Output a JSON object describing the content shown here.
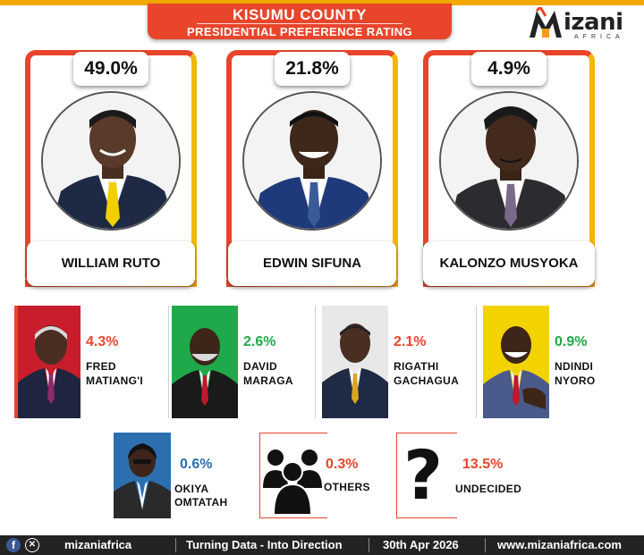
{
  "header": {
    "title_line1": "KISUMU COUNTY",
    "title_line2": "PRESIDENTIAL PREFERENCE RATING",
    "logo_word": "izani",
    "logo_sub": "AFRICA"
  },
  "colors": {
    "accent_red": "#e8452b",
    "accent_orange": "#f29a1e",
    "accent_yellow": "#f2b705",
    "pct_red": "#e8452b",
    "pct_green": "#1fa94a",
    "pct_blue": "#2c6fb0",
    "footer_bg": "#232323"
  },
  "chart_data": {
    "type": "bar",
    "categories": [
      "WILLIAM RUTO",
      "EDWIN SIFUNA",
      "KALONZO MUSYOKA",
      "FRED MATIANG'I",
      "DAVID MARAGA",
      "RIGATHI GACHAGUA",
      "NDINDI NYORO",
      "OKIYA OMTATAH",
      "OTHERS",
      "UNDECIDED"
    ],
    "values": [
      49.0,
      21.8,
      4.9,
      4.3,
      2.6,
      2.1,
      0.9,
      0.6,
      0.3,
      13.5
    ],
    "title": "KISUMU COUNTY PRESIDENTIAL PREFERENCE RATING",
    "unit": "%"
  },
  "top": [
    {
      "pct": "49.0%",
      "name": "WILLIAM RUTO"
    },
    {
      "pct": "21.8%",
      "name": "EDWIN SIFUNA"
    },
    {
      "pct": "4.9%",
      "name": "KALONZO MUSYOKA"
    }
  ],
  "mid": [
    {
      "pct": "4.3%",
      "line1": "FRED",
      "line2": "MATIANG'I"
    },
    {
      "pct": "2.6%",
      "line1": "DAVID",
      "line2": "MARAGA"
    },
    {
      "pct": "2.1%",
      "line1": "RIGATHI",
      "line2": "GACHAGUA"
    },
    {
      "pct": "0.9%",
      "line1": "NDINDI",
      "line2": "NYORO"
    }
  ],
  "bottom": [
    {
      "pct": "0.6%",
      "line1": "OKIYA",
      "line2": "OMTATAH"
    },
    {
      "pct": "0.3%",
      "line1": "OTHERS"
    },
    {
      "pct": "13.5%",
      "line1": "UNDECIDED"
    }
  ],
  "footer": {
    "handle": "mizaniafrica",
    "slogan": "Turning Data - Into Direction",
    "date": "30th  Apr  2026",
    "website": "www.mizaniafrica.com"
  },
  "icons": [
    "mizani-logo-icon",
    "facebook-icon",
    "x-icon",
    "group-people-icon",
    "question-mark-icon"
  ]
}
